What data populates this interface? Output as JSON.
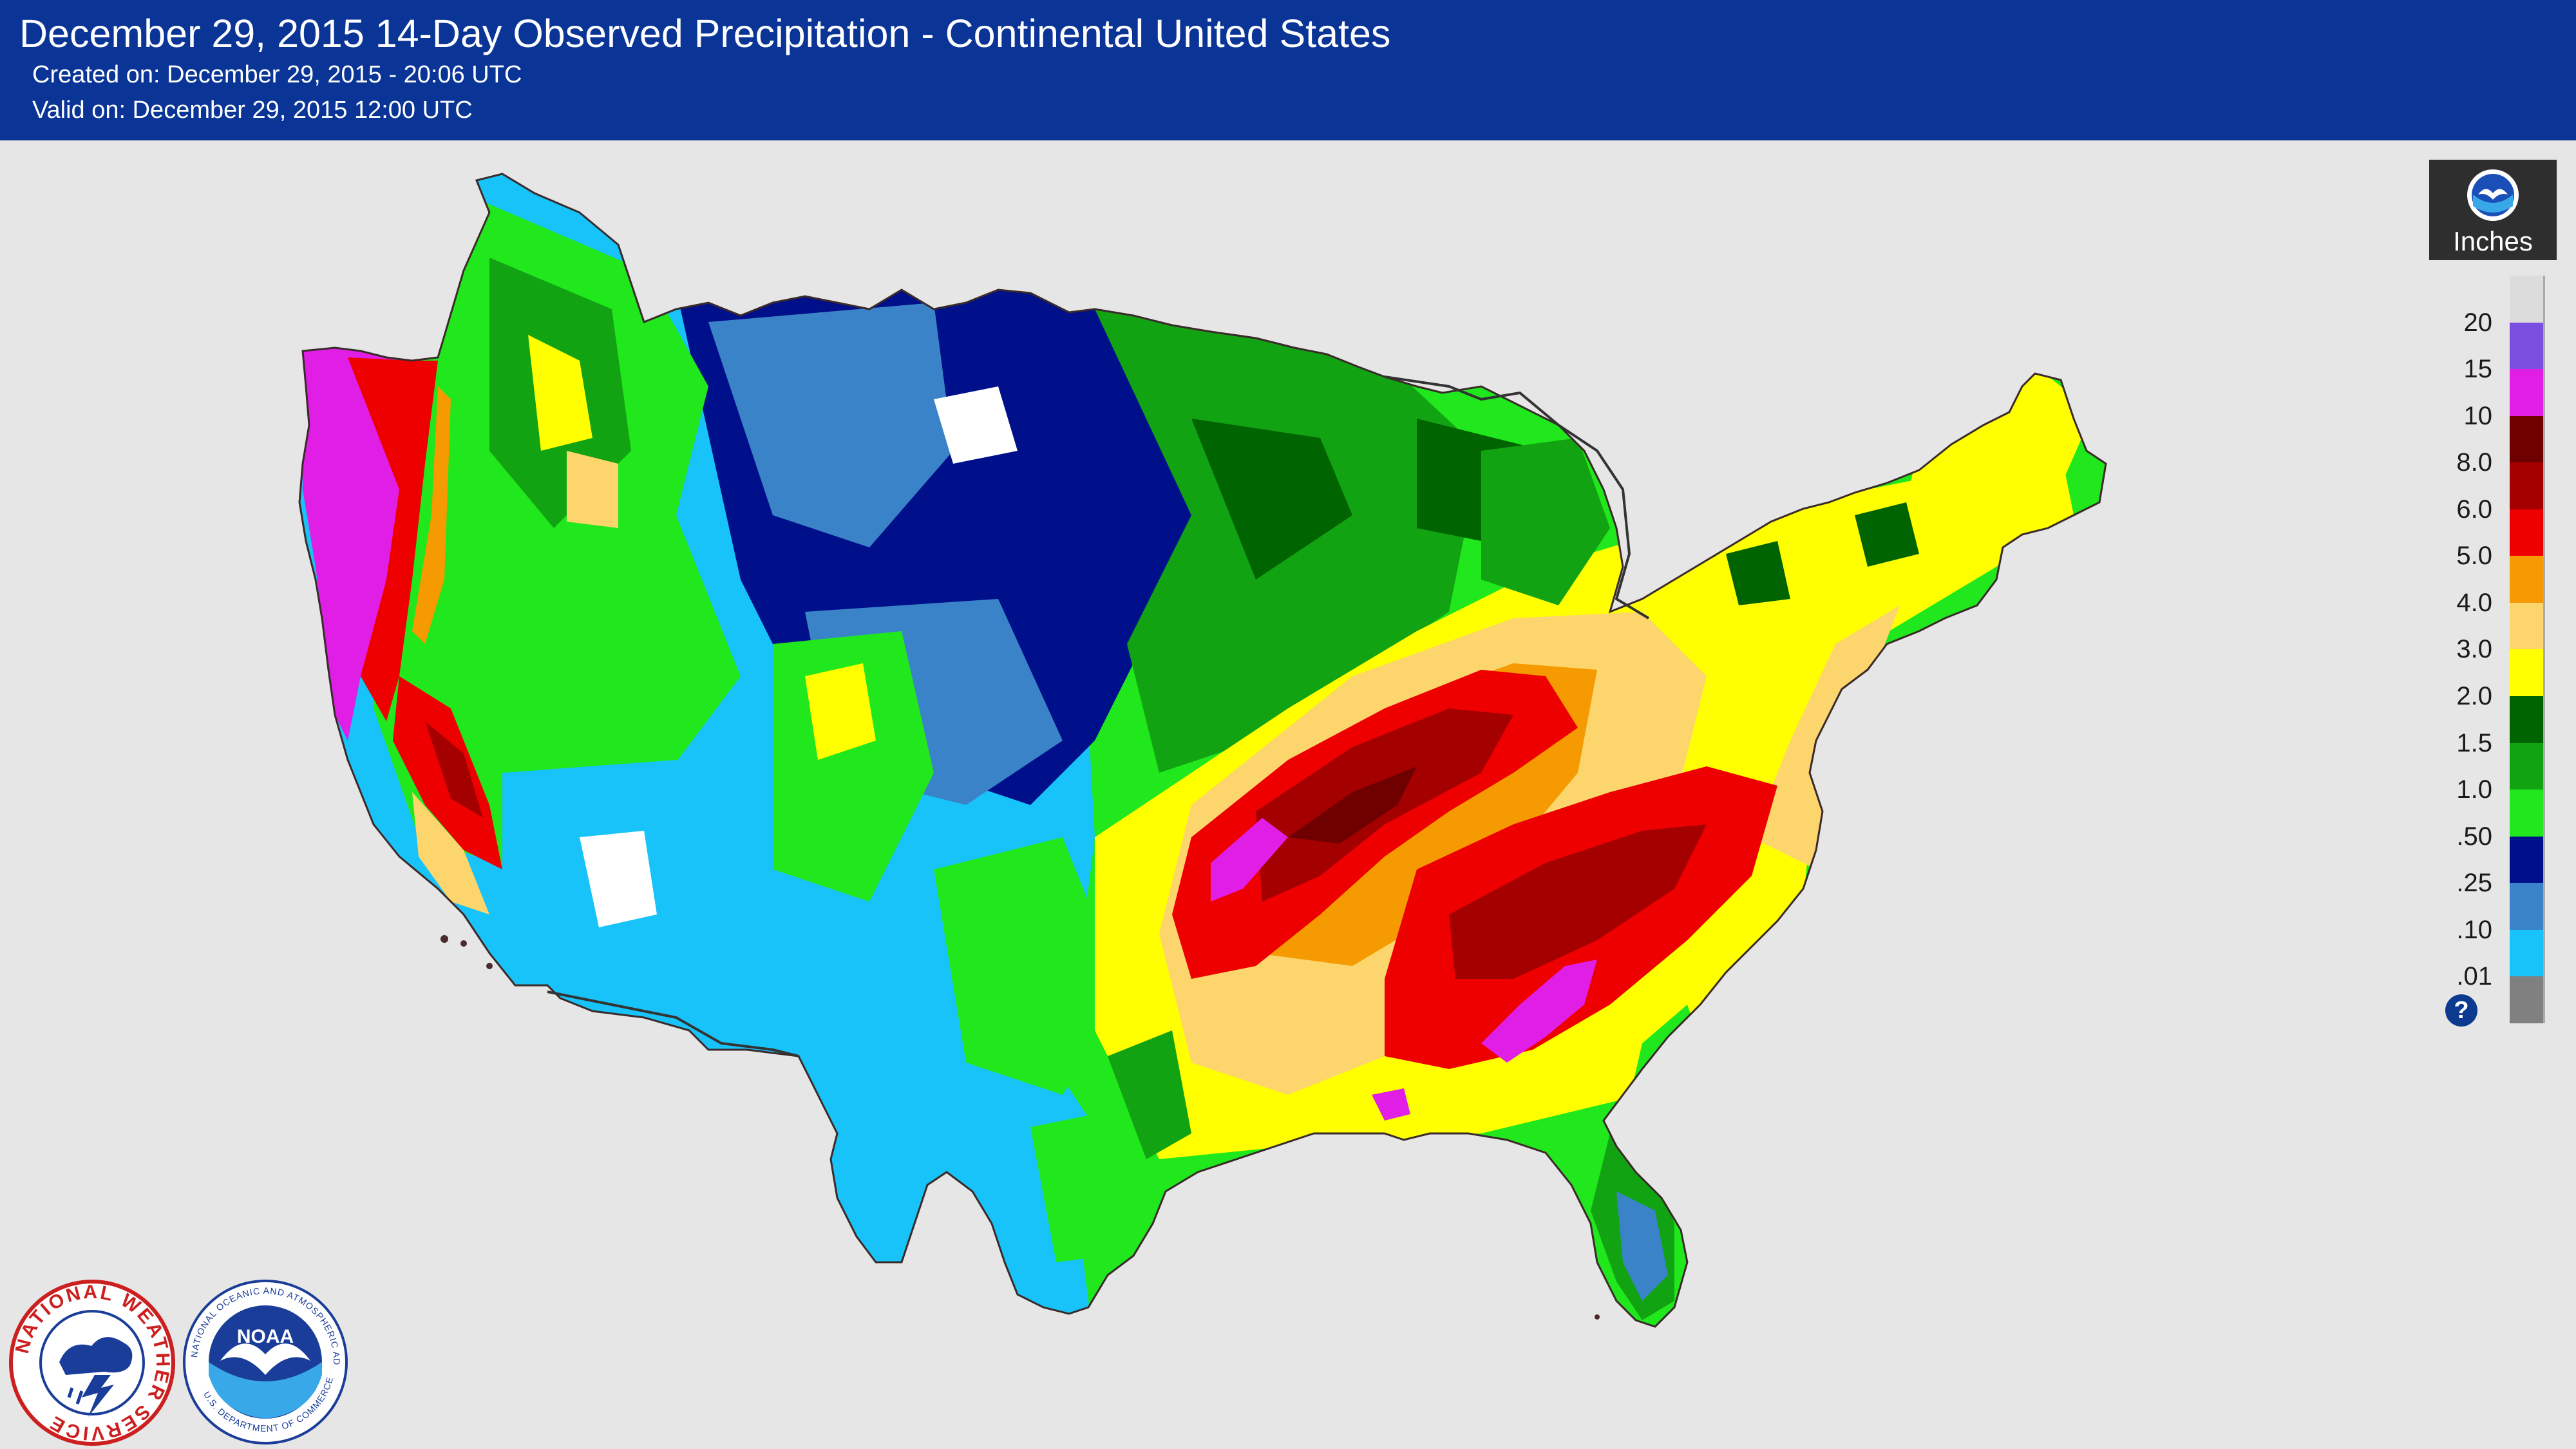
{
  "header": {
    "title": "December 29, 2015 14-Day Observed Precipitation - Continental United States",
    "created": "Created on: December 29, 2015 - 20:06 UTC",
    "valid": "Valid on: December 29, 2015 12:00 UTC",
    "background_color": "#0a3596"
  },
  "legend": {
    "unit": "Inches",
    "logo_icon": "noaa-icon",
    "help_icon": "help-icon",
    "help_glyph": "?",
    "bins": [
      {
        "label": "",
        "color": "#dcdcdc"
      },
      {
        "label": "20",
        "color": "#7a4fe0"
      },
      {
        "label": "15",
        "color": "#e01ee6"
      },
      {
        "label": "10",
        "color": "#6e0000"
      },
      {
        "label": "8.0",
        "color": "#a50000"
      },
      {
        "label": "6.0",
        "color": "#ee0000"
      },
      {
        "label": "5.0",
        "color": "#f59a00"
      },
      {
        "label": "4.0",
        "color": "#fcd56c"
      },
      {
        "label": "3.0",
        "color": "#ffff00"
      },
      {
        "label": "2.0",
        "color": "#006400"
      },
      {
        "label": "1.5",
        "color": "#12a312"
      },
      {
        "label": "1.0",
        "color": "#20e81c"
      },
      {
        "label": ".50",
        "color": "#000f8a"
      },
      {
        "label": ".25",
        "color": "#3b83c8"
      },
      {
        "label": ".10",
        "color": "#17c3f8"
      },
      {
        "label": ".01",
        "color": "#808080"
      }
    ]
  },
  "logos": {
    "nws_text": "NATIONAL WEATHER SERVICE",
    "noaa_short": "NOAA",
    "noaa_ring_text": "NATIONAL OCEANIC AND ATMOSPHERIC ADMINISTRATION",
    "noaa_bottom_text": "U.S. DEPARTMENT OF COMMERCE"
  }
}
